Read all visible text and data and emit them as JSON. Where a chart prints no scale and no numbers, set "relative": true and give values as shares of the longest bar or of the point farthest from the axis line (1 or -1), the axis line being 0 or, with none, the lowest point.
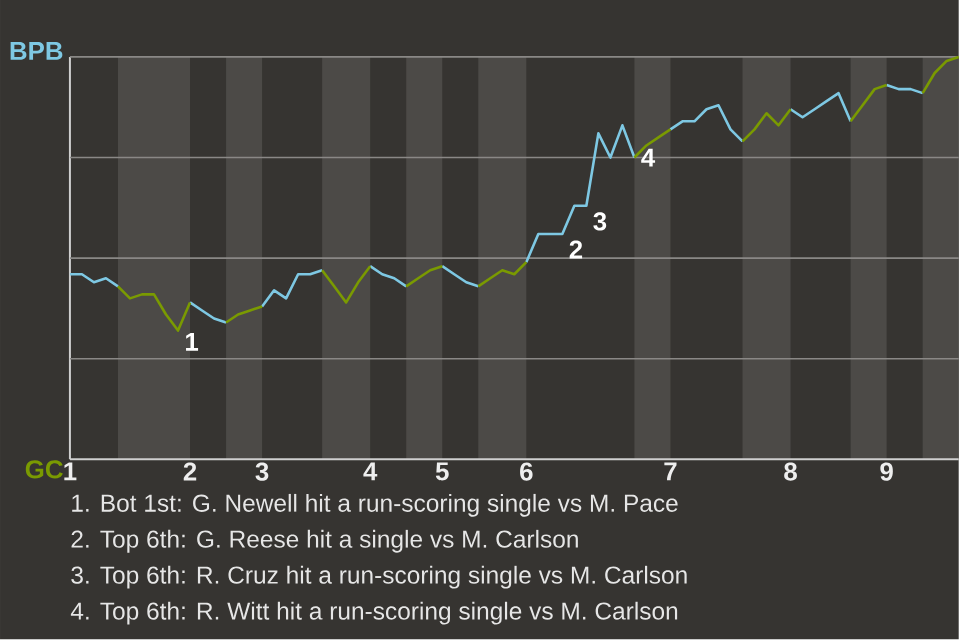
{
  "chart_data": {
    "type": "line",
    "relative": true,
    "categories": [
      "1",
      null,
      null,
      null,
      null,
      null,
      null,
      null,
      null,
      null,
      "2",
      null,
      null,
      null,
      null,
      null,
      "3",
      null,
      null,
      null,
      null,
      null,
      null,
      null,
      null,
      "4",
      null,
      null,
      null,
      null,
      null,
      "5",
      null,
      null,
      null,
      null,
      null,
      null,
      "6",
      null,
      null,
      null,
      null,
      null,
      null,
      null,
      null,
      null,
      null,
      null,
      "7",
      null,
      null,
      null,
      null,
      null,
      null,
      null,
      null,
      null,
      "8",
      null,
      null,
      null,
      null,
      null,
      null,
      null,
      "9",
      null,
      null,
      null,
      null,
      null,
      null
    ],
    "grid": "y",
    "legend": "left",
    "series": [
      {
        "name": "BPB",
        "color": "#7ec8e3",
        "values": [
          0.46,
          0.46,
          0.44,
          0.45,
          0.43,
          null,
          null,
          null,
          null,
          null,
          0.39,
          0.37,
          0.35,
          0.34,
          null,
          null,
          0.38,
          0.42,
          0.4,
          0.46,
          0.46,
          0.47,
          null,
          null,
          null,
          0.48,
          0.46,
          0.45,
          0.43,
          null,
          null,
          0.48,
          0.46,
          0.44,
          0.43,
          null,
          null,
          null,
          0.49,
          0.56,
          0.56,
          0.56,
          0.63,
          0.63,
          0.81,
          0.75,
          0.83,
          0.75,
          null,
          null,
          0.82,
          0.84,
          0.84,
          0.87,
          0.88,
          0.82,
          0.79,
          null,
          null,
          null,
          0.87,
          0.85,
          0.87,
          0.89,
          0.91,
          0.84,
          null,
          null,
          0.93,
          0.92,
          0.92,
          0.91,
          null,
          null,
          null
        ]
      },
      {
        "name": "GC",
        "color": "#7a9a01",
        "values": [
          null,
          null,
          null,
          null,
          0.43,
          0.4,
          0.41,
          0.41,
          0.36,
          0.32,
          0.39,
          null,
          null,
          0.34,
          0.36,
          0.37,
          0.38,
          null,
          null,
          null,
          null,
          0.47,
          0.43,
          0.39,
          0.44,
          0.48,
          null,
          null,
          0.43,
          0.45,
          0.47,
          0.48,
          null,
          null,
          0.43,
          0.45,
          0.47,
          0.46,
          0.49,
          null,
          null,
          null,
          null,
          null,
          null,
          null,
          null,
          0.75,
          0.78,
          0.8,
          0.82,
          null,
          null,
          null,
          null,
          null,
          0.79,
          0.82,
          0.86,
          0.83,
          0.87,
          null,
          null,
          null,
          null,
          0.84,
          0.88,
          0.92,
          0.93,
          null,
          null,
          0.91,
          0.96,
          0.99,
          1
        ]
      }
    ],
    "annotations": [
      "1",
      "2",
      "3",
      "4",
      "1. Bot 1st: G. Newell hit a run-scoring single vs M. Pace",
      "2. Top 6th: G. Reese hit a single vs M. Carlson",
      "3. Top 6th: R. Cruz hit a run-scoring single vs M. Carlson",
      "4. Top 6th: R. Witt hit a run-scoring single vs M. Carlson"
    ]
  }
}
